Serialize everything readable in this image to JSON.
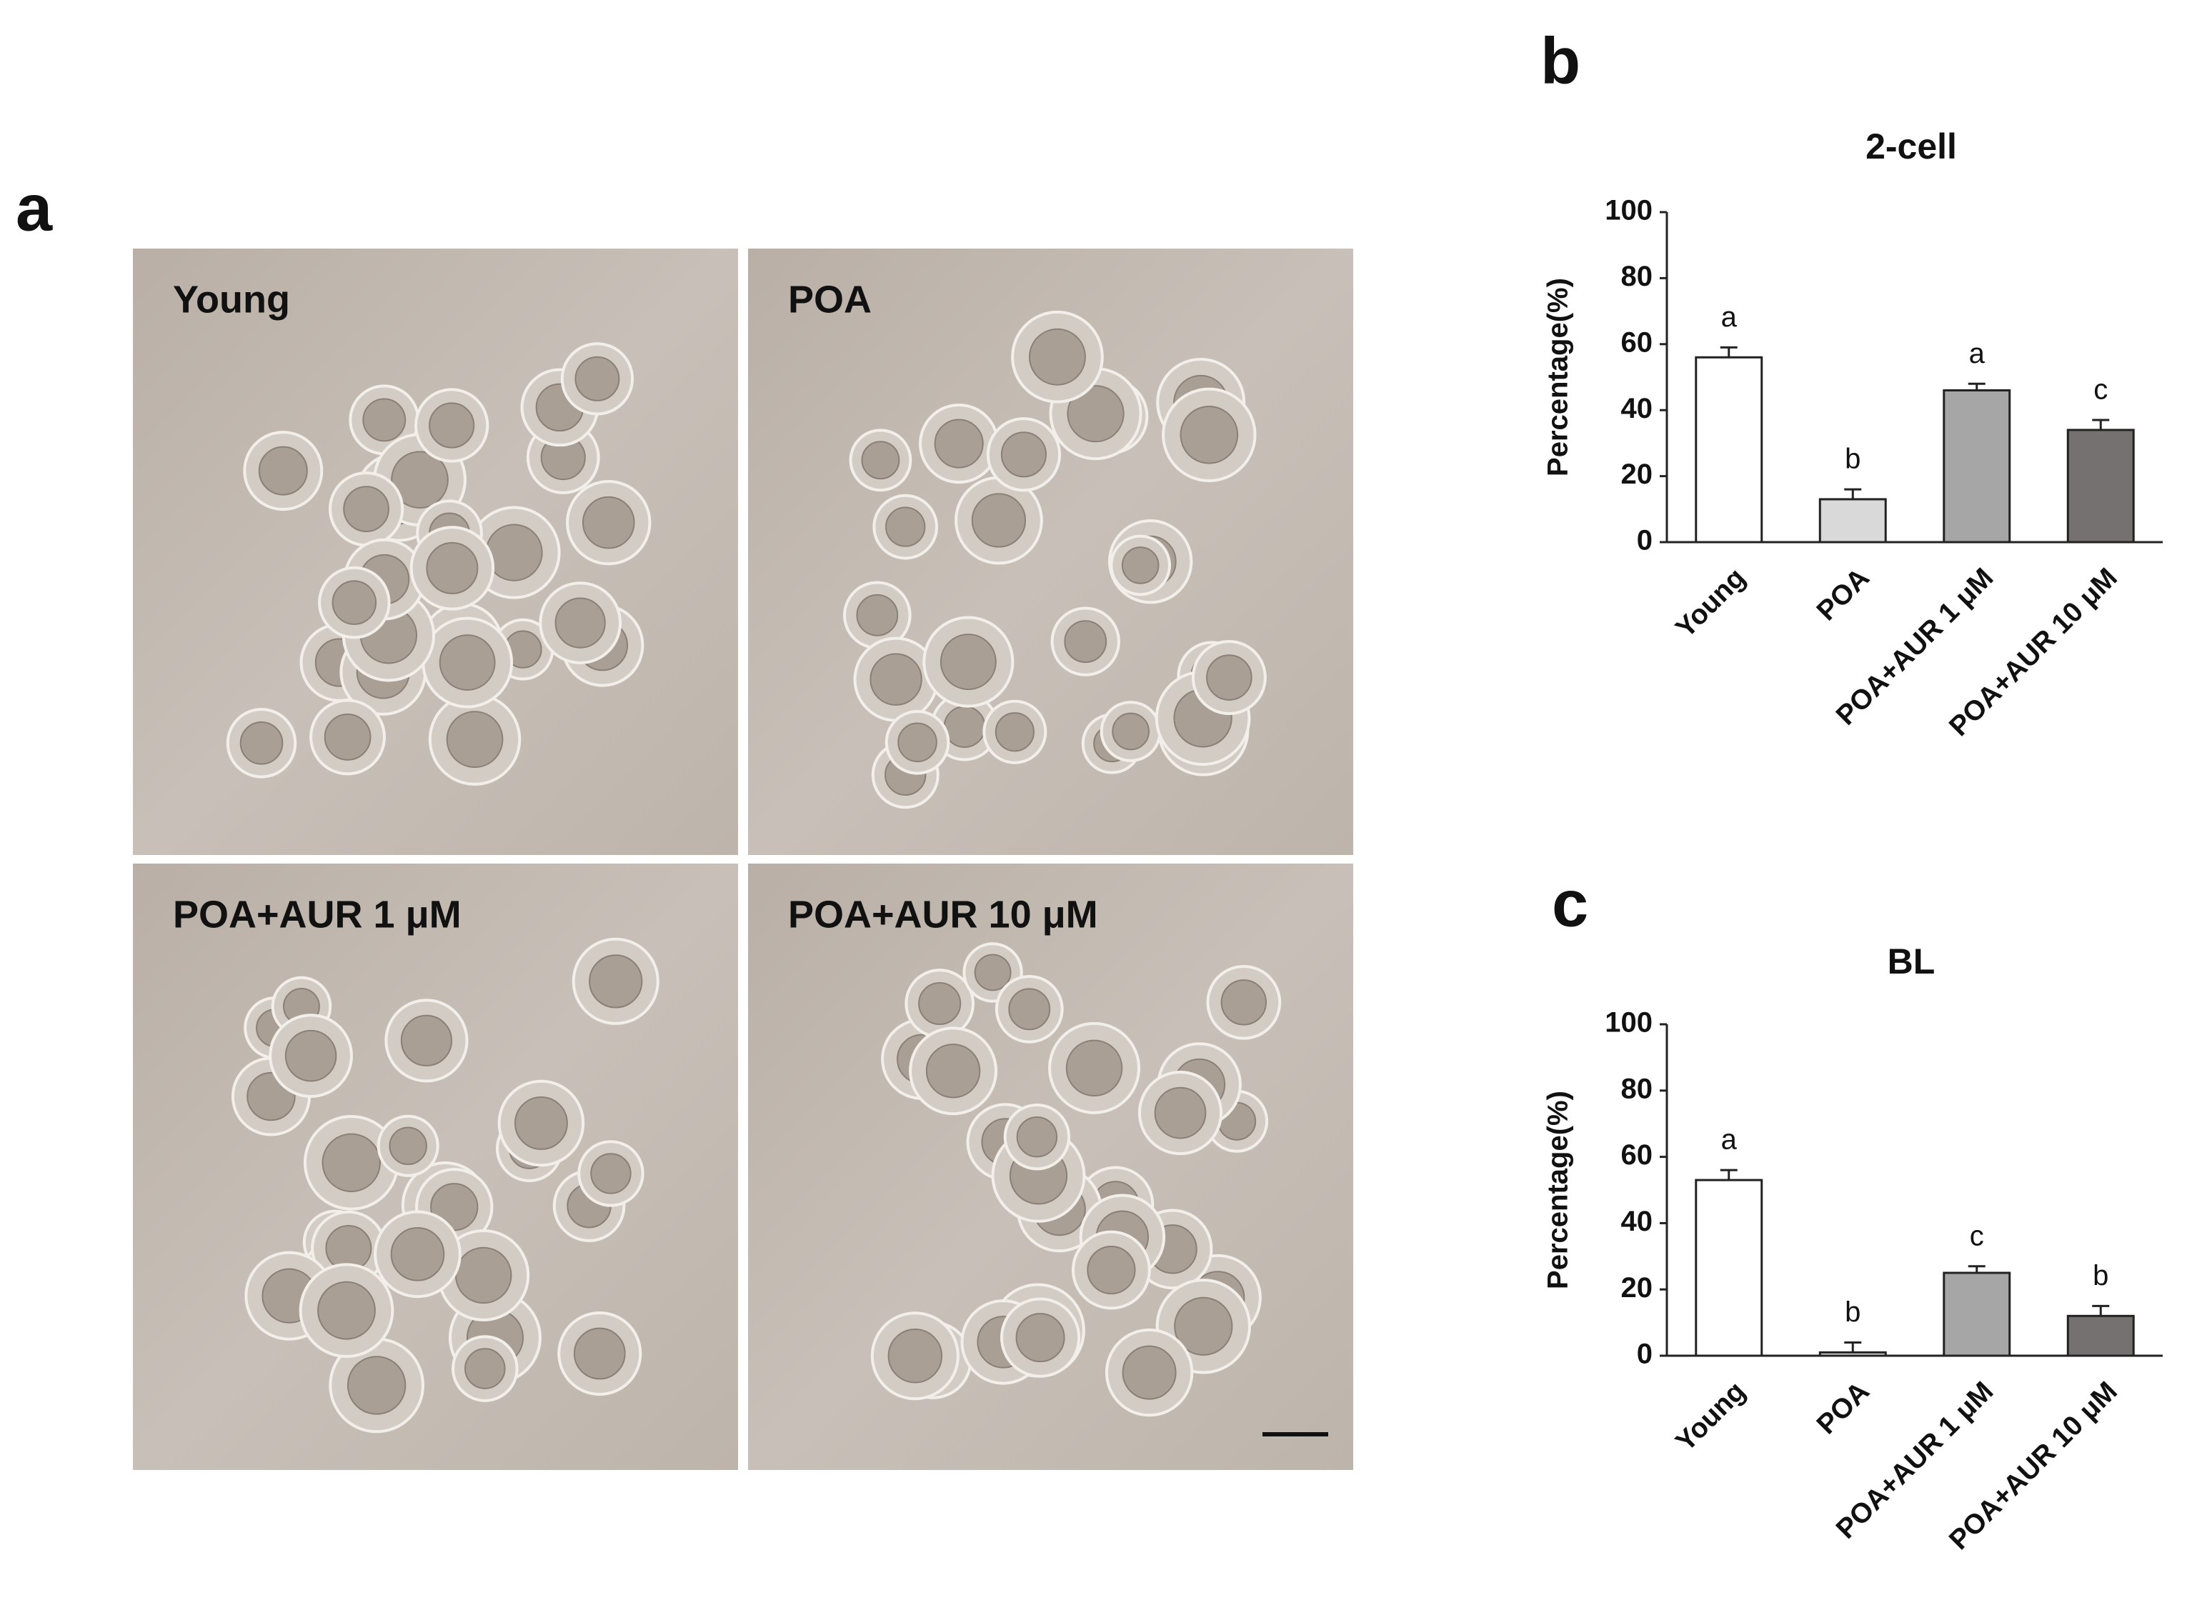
{
  "panel_labels": [
    "a",
    "b",
    "c"
  ],
  "micrographs": [
    {
      "label": "Young"
    },
    {
      "label": "POA"
    },
    {
      "label": "POA+AUR  1 μM"
    },
    {
      "label": "POA+AUR  10 μM"
    }
  ],
  "chart_data": [
    {
      "type": "bar",
      "title": "2-cell",
      "y_label": "Percentage(%)",
      "categories": [
        "Young",
        "POA",
        "POA+AUR 1 μM",
        "POA+AUR 10 μM"
      ],
      "values": [
        56,
        13,
        46,
        34
      ],
      "errors": [
        3,
        3,
        2,
        3
      ],
      "significance": [
        "a",
        "b",
        "a",
        "c"
      ],
      "colors": [
        "#ffffff",
        "#d9d9d9",
        "#a6a6a6",
        "#767171"
      ],
      "ylim": [
        0,
        100
      ],
      "yticks": [
        0,
        20,
        40,
        60,
        80,
        100
      ]
    },
    {
      "type": "bar",
      "title": "BL",
      "y_label": "Percentage(%)",
      "categories": [
        "Young",
        "POA",
        "POA+AUR 1 μM",
        "POA+AUR 10 μM"
      ],
      "values": [
        53,
        1,
        25,
        12
      ],
      "errors": [
        3,
        3,
        2,
        3
      ],
      "significance": [
        "a",
        "b",
        "c",
        "b"
      ],
      "colors": [
        "#ffffff",
        "#d9d9d9",
        "#a6a6a6",
        "#767171"
      ],
      "ylim": [
        0,
        100
      ],
      "yticks": [
        0,
        20,
        40,
        60,
        80,
        100
      ]
    }
  ]
}
